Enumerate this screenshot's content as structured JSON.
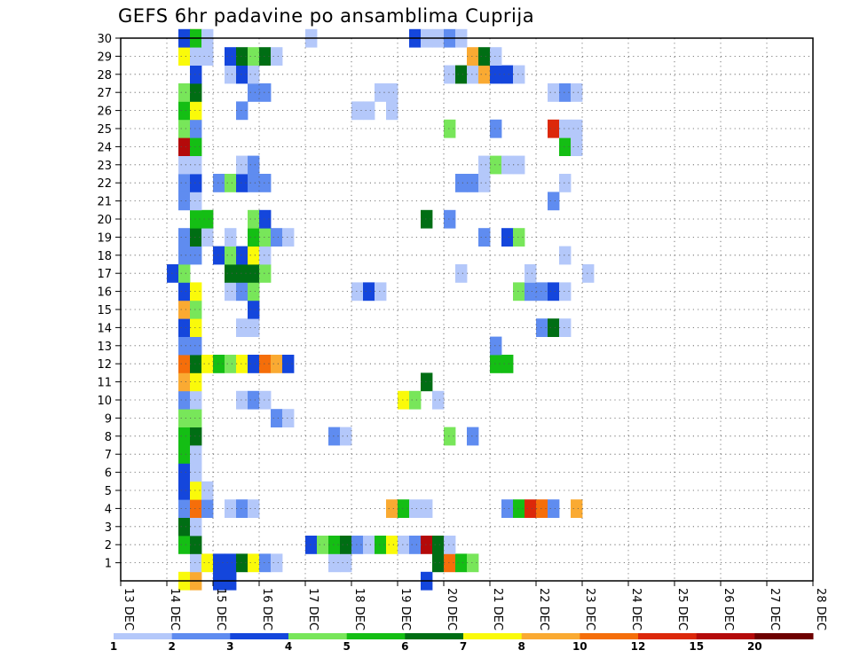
{
  "chart_data": {
    "type": "heatmap",
    "title": "GEFS 6hr padavine po ansamblima Cuprija",
    "xlabel": "",
    "ylabel": "",
    "x_ticks": [
      "13 DEC",
      "14 DEC",
      "15 DEC",
      "16 DEC",
      "17 DEC",
      "18 DEC",
      "19 DEC",
      "20 DEC",
      "21 DEC",
      "22 DEC",
      "23 DEC",
      "24 DEC",
      "25 DEC",
      "26 DEC",
      "27 DEC",
      "28 DEC"
    ],
    "y_ticks": [
      "1",
      "2",
      "3",
      "4",
      "5",
      "6",
      "7",
      "8",
      "9",
      "10",
      "11",
      "12",
      "13",
      "14",
      "15",
      "16",
      "17",
      "18",
      "19",
      "20",
      "21",
      "22",
      "23",
      "24",
      "25",
      "26",
      "27",
      "28",
      "29",
      "30"
    ],
    "x_unit": "6-hour step index from 13 DEC 00Z",
    "ylim": [
      0,
      30
    ],
    "grid": true,
    "legend": {
      "thresholds": [
        "1",
        "2",
        "3",
        "4",
        "5",
        "6",
        "7",
        "8",
        "10",
        "12",
        "15",
        "20"
      ],
      "colors": [
        "#b4c8fa",
        "#5f8cf0",
        "#1446dc",
        "#78e65a",
        "#14be14",
        "#006e14",
        "#fafa0a",
        "#faaa32",
        "#f56e0a",
        "#dc280a",
        "#b40a0a",
        "#6e0000"
      ]
    },
    "cells": [
      [
        5,
        0,
        7
      ],
      [
        6,
        0,
        8
      ],
      [
        6,
        30,
        8
      ],
      [
        8,
        0,
        3
      ],
      [
        9,
        0,
        3
      ],
      [
        26,
        0,
        3
      ],
      [
        6,
        1,
        1
      ],
      [
        7,
        1,
        7
      ],
      [
        8,
        1,
        3
      ],
      [
        9,
        1,
        3
      ],
      [
        10,
        1,
        6
      ],
      [
        11,
        1,
        7
      ],
      [
        12,
        1,
        2
      ],
      [
        13,
        1,
        1
      ],
      [
        18,
        1,
        1
      ],
      [
        19,
        1,
        1
      ],
      [
        27,
        1,
        6
      ],
      [
        28,
        1,
        9
      ],
      [
        29,
        1,
        5
      ],
      [
        30,
        1,
        4
      ],
      [
        5,
        2,
        5
      ],
      [
        6,
        2,
        6
      ],
      [
        16,
        2,
        3
      ],
      [
        17,
        2,
        4
      ],
      [
        18,
        2,
        5
      ],
      [
        19,
        2,
        6
      ],
      [
        20,
        2,
        2
      ],
      [
        21,
        2,
        1
      ],
      [
        22,
        2,
        5
      ],
      [
        23,
        2,
        7
      ],
      [
        24,
        2,
        1
      ],
      [
        25,
        2,
        2
      ],
      [
        26,
        2,
        11
      ],
      [
        27,
        2,
        6
      ],
      [
        28,
        2,
        1
      ],
      [
        5,
        3,
        6
      ],
      [
        6,
        3,
        1
      ],
      [
        5,
        4,
        2
      ],
      [
        6,
        4,
        9
      ],
      [
        7,
        4,
        2
      ],
      [
        9,
        4,
        1
      ],
      [
        10,
        4,
        2
      ],
      [
        11,
        4,
        1
      ],
      [
        23,
        4,
        8
      ],
      [
        24,
        4,
        5
      ],
      [
        25,
        4,
        1
      ],
      [
        26,
        4,
        1
      ],
      [
        33,
        4,
        2
      ],
      [
        34,
        4,
        5
      ],
      [
        35,
        4,
        10
      ],
      [
        36,
        4,
        9
      ],
      [
        37,
        4,
        2
      ],
      [
        39,
        4,
        8
      ],
      [
        5,
        5,
        3
      ],
      [
        6,
        5,
        7
      ],
      [
        7,
        5,
        1
      ],
      [
        5,
        6,
        3
      ],
      [
        6,
        6,
        1
      ],
      [
        5,
        7,
        5
      ],
      [
        6,
        7,
        1
      ],
      [
        5,
        8,
        5
      ],
      [
        6,
        8,
        6
      ],
      [
        18,
        8,
        2
      ],
      [
        19,
        8,
        1
      ],
      [
        28,
        8,
        4
      ],
      [
        30,
        8,
        2
      ],
      [
        5,
        9,
        4
      ],
      [
        6,
        9,
        4
      ],
      [
        13,
        9,
        2
      ],
      [
        14,
        9,
        1
      ],
      [
        5,
        10,
        2
      ],
      [
        6,
        10,
        1
      ],
      [
        10,
        10,
        1
      ],
      [
        11,
        10,
        2
      ],
      [
        12,
        10,
        1
      ],
      [
        24,
        10,
        7
      ],
      [
        25,
        10,
        4
      ],
      [
        27,
        10,
        1
      ],
      [
        5,
        11,
        8
      ],
      [
        6,
        11,
        7
      ],
      [
        26,
        11,
        6
      ],
      [
        5,
        12,
        9
      ],
      [
        6,
        12,
        6
      ],
      [
        7,
        12,
        7
      ],
      [
        8,
        12,
        5
      ],
      [
        9,
        12,
        4
      ],
      [
        10,
        12,
        7
      ],
      [
        11,
        12,
        3
      ],
      [
        12,
        12,
        9
      ],
      [
        13,
        12,
        8
      ],
      [
        14,
        12,
        3
      ],
      [
        32,
        12,
        5
      ],
      [
        33,
        12,
        5
      ],
      [
        5,
        13,
        2
      ],
      [
        6,
        13,
        2
      ],
      [
        32,
        13,
        2
      ],
      [
        5,
        14,
        3
      ],
      [
        6,
        14,
        7
      ],
      [
        10,
        14,
        1
      ],
      [
        11,
        14,
        1
      ],
      [
        36,
        14,
        2
      ],
      [
        37,
        14,
        6
      ],
      [
        38,
        14,
        1
      ],
      [
        5,
        15,
        8
      ],
      [
        6,
        15,
        4
      ],
      [
        11,
        15,
        3
      ],
      [
        5,
        16,
        3
      ],
      [
        6,
        16,
        7
      ],
      [
        9,
        16,
        1
      ],
      [
        10,
        16,
        2
      ],
      [
        11,
        16,
        4
      ],
      [
        20,
        16,
        1
      ],
      [
        21,
        16,
        3
      ],
      [
        22,
        16,
        1
      ],
      [
        34,
        16,
        4
      ],
      [
        35,
        16,
        2
      ],
      [
        36,
        16,
        2
      ],
      [
        37,
        16,
        3
      ],
      [
        38,
        16,
        1
      ],
      [
        4,
        17,
        3
      ],
      [
        5,
        17,
        4
      ],
      [
        9,
        17,
        6
      ],
      [
        10,
        17,
        6
      ],
      [
        11,
        17,
        6
      ],
      [
        12,
        17,
        4
      ],
      [
        29,
        17,
        1
      ],
      [
        35,
        17,
        1
      ],
      [
        40,
        17,
        1
      ],
      [
        5,
        18,
        2
      ],
      [
        6,
        18,
        2
      ],
      [
        8,
        18,
        3
      ],
      [
        9,
        18,
        4
      ],
      [
        10,
        18,
        3
      ],
      [
        11,
        18,
        7
      ],
      [
        12,
        18,
        1
      ],
      [
        38,
        18,
        1
      ],
      [
        5,
        19,
        2
      ],
      [
        6,
        19,
        6
      ],
      [
        7,
        19,
        1
      ],
      [
        9,
        19,
        1
      ],
      [
        11,
        19,
        5
      ],
      [
        12,
        19,
        4
      ],
      [
        13,
        19,
        2
      ],
      [
        14,
        19,
        1
      ],
      [
        31,
        19,
        2
      ],
      [
        33,
        19,
        3
      ],
      [
        34,
        19,
        4
      ],
      [
        6,
        20,
        5
      ],
      [
        7,
        20,
        5
      ],
      [
        11,
        20,
        4
      ],
      [
        12,
        20,
        3
      ],
      [
        26,
        20,
        6
      ],
      [
        28,
        20,
        2
      ],
      [
        5,
        21,
        2
      ],
      [
        6,
        21,
        1
      ],
      [
        37,
        21,
        2
      ],
      [
        5,
        22,
        2
      ],
      [
        6,
        22,
        3
      ],
      [
        8,
        22,
        2
      ],
      [
        9,
        22,
        4
      ],
      [
        10,
        22,
        3
      ],
      [
        11,
        22,
        2
      ],
      [
        12,
        22,
        2
      ],
      [
        29,
        22,
        2
      ],
      [
        30,
        22,
        2
      ],
      [
        31,
        22,
        1
      ],
      [
        38,
        22,
        1
      ],
      [
        5,
        23,
        1
      ],
      [
        6,
        23,
        1
      ],
      [
        10,
        23,
        1
      ],
      [
        11,
        23,
        2
      ],
      [
        31,
        23,
        1
      ],
      [
        32,
        23,
        4
      ],
      [
        33,
        23,
        1
      ],
      [
        34,
        23,
        1
      ],
      [
        5,
        24,
        11
      ],
      [
        6,
        24,
        5
      ],
      [
        38,
        24,
        5
      ],
      [
        39,
        24,
        1
      ],
      [
        5,
        25,
        4
      ],
      [
        6,
        25,
        2
      ],
      [
        28,
        25,
        4
      ],
      [
        32,
        25,
        2
      ],
      [
        37,
        25,
        10
      ],
      [
        38,
        25,
        1
      ],
      [
        39,
        25,
        1
      ],
      [
        5,
        26,
        5
      ],
      [
        6,
        26,
        7
      ],
      [
        10,
        26,
        2
      ],
      [
        20,
        26,
        1
      ],
      [
        21,
        26,
        1
      ],
      [
        23,
        26,
        1
      ],
      [
        5,
        27,
        4
      ],
      [
        6,
        27,
        6
      ],
      [
        11,
        27,
        2
      ],
      [
        12,
        27,
        2
      ],
      [
        22,
        27,
        1
      ],
      [
        23,
        27,
        1
      ],
      [
        37,
        27,
        1
      ],
      [
        38,
        27,
        2
      ],
      [
        39,
        27,
        1
      ],
      [
        6,
        28,
        3
      ],
      [
        9,
        28,
        1
      ],
      [
        10,
        28,
        3
      ],
      [
        11,
        28,
        1
      ],
      [
        28,
        28,
        1
      ],
      [
        29,
        28,
        6
      ],
      [
        30,
        28,
        1
      ],
      [
        31,
        28,
        8
      ],
      [
        32,
        28,
        3
      ],
      [
        33,
        28,
        3
      ],
      [
        34,
        28,
        1
      ],
      [
        5,
        29,
        7
      ],
      [
        6,
        29,
        1
      ],
      [
        7,
        29,
        1
      ],
      [
        9,
        29,
        3
      ],
      [
        10,
        29,
        6
      ],
      [
        11,
        29,
        4
      ],
      [
        12,
        29,
        6
      ],
      [
        13,
        29,
        1
      ],
      [
        30,
        29,
        8
      ],
      [
        31,
        29,
        6
      ],
      [
        32,
        29,
        1
      ],
      [
        5,
        30,
        3
      ],
      [
        6,
        30,
        5
      ],
      [
        7,
        30,
        1
      ],
      [
        16,
        30,
        1
      ],
      [
        25,
        30,
        3
      ],
      [
        26,
        30,
        1
      ],
      [
        27,
        30,
        1
      ],
      [
        28,
        30,
        2
      ],
      [
        29,
        30,
        1
      ]
    ]
  }
}
